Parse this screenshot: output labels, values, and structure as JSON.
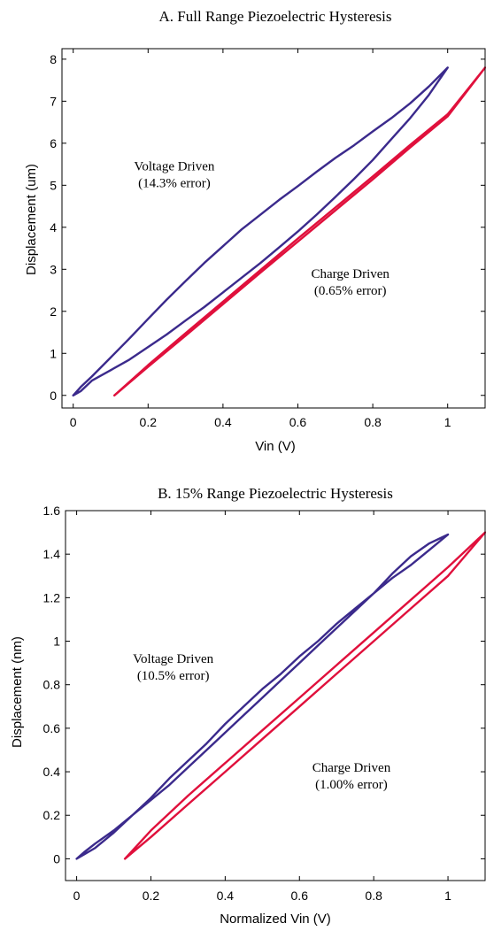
{
  "chart_data": [
    {
      "type": "line",
      "title": "A. Full Range Piezoelectric Hysteresis",
      "xlabel": "Vin (V)",
      "ylabel": "Displacement (um)",
      "xlim": [
        -0.03,
        1.1
      ],
      "ylim": [
        -0.3,
        8.25
      ],
      "xticks": [
        0,
        0.2,
        0.4,
        0.6,
        0.8,
        1
      ],
      "yticks": [
        0,
        1,
        2,
        3,
        4,
        5,
        6,
        7,
        8
      ],
      "grid": false,
      "legend": "none",
      "annotations": [
        {
          "lines": [
            "Voltage Driven",
            "(14.3% error)"
          ],
          "at": [
            0.27,
            5.35
          ]
        },
        {
          "lines": [
            "Charge Driven",
            "(0.65% error)"
          ],
          "at": [
            0.74,
            2.8
          ]
        }
      ],
      "series": [
        {
          "color": "#3b2a8c",
          "x": [
            0.0,
            0.02,
            0.05,
            0.1,
            0.15,
            0.2,
            0.25,
            0.3,
            0.35,
            0.4,
            0.45,
            0.5,
            0.55,
            0.6,
            0.65,
            0.7,
            0.75,
            0.8,
            0.85,
            0.9,
            0.95,
            1.0,
            0.95,
            0.9,
            0.85,
            0.8,
            0.75,
            0.7,
            0.65,
            0.6,
            0.55,
            0.5,
            0.45,
            0.4,
            0.35,
            0.3,
            0.25,
            0.2,
            0.15,
            0.1,
            0.05,
            0.02,
            0.0
          ],
          "y": [
            0.0,
            0.1,
            0.35,
            0.6,
            0.85,
            1.15,
            1.45,
            1.78,
            2.1,
            2.45,
            2.8,
            3.15,
            3.52,
            3.9,
            4.3,
            4.72,
            5.15,
            5.6,
            6.1,
            6.6,
            7.15,
            7.8,
            7.35,
            6.95,
            6.6,
            6.28,
            5.95,
            5.65,
            5.32,
            4.98,
            4.65,
            4.3,
            3.95,
            3.55,
            3.15,
            2.72,
            2.28,
            1.82,
            1.35,
            0.9,
            0.45,
            0.2,
            0.0
          ]
        },
        {
          "color": "#e0103c",
          "x": [
            0.11,
            0.2,
            0.3,
            0.4,
            0.5,
            0.6,
            0.7,
            0.8,
            0.9,
            1.0,
            1.1,
            1.0,
            0.9,
            0.8,
            0.7,
            0.6,
            0.5,
            0.4,
            0.3,
            0.2,
            0.11
          ],
          "y": [
            0.0,
            0.68,
            1.42,
            2.17,
            2.92,
            3.66,
            4.4,
            5.14,
            5.9,
            6.64,
            7.8,
            6.69,
            5.96,
            5.21,
            4.47,
            3.73,
            2.98,
            2.23,
            1.48,
            0.72,
            0.0
          ]
        }
      ]
    },
    {
      "type": "line",
      "title": "B. 15% Range Piezoelectric Hysteresis",
      "xlabel": "Normalized Vin (V)",
      "ylabel": "Displacement (nm)",
      "xlim": [
        -0.03,
        1.1
      ],
      "ylim": [
        -0.1,
        1.6
      ],
      "xticks": [
        0,
        0.2,
        0.4,
        0.6,
        0.8,
        1
      ],
      "yticks": [
        0,
        0.2,
        0.4,
        0.6,
        0.8,
        1,
        1.2,
        1.4,
        1.6
      ],
      "grid": false,
      "legend": "none",
      "annotations": [
        {
          "lines": [
            "Voltage Driven",
            "(10.5% error)"
          ],
          "at": [
            0.26,
            0.9
          ]
        },
        {
          "lines": [
            "Charge Driven",
            "(1.00% error)"
          ],
          "at": [
            0.74,
            0.4
          ]
        }
      ],
      "series": [
        {
          "color": "#3b2a8c",
          "x": [
            0.0,
            0.02,
            0.05,
            0.1,
            0.15,
            0.2,
            0.25,
            0.3,
            0.35,
            0.4,
            0.45,
            0.5,
            0.55,
            0.6,
            0.65,
            0.7,
            0.75,
            0.8,
            0.85,
            0.9,
            0.95,
            1.0,
            0.95,
            0.9,
            0.85,
            0.8,
            0.75,
            0.7,
            0.65,
            0.6,
            0.55,
            0.5,
            0.45,
            0.4,
            0.35,
            0.3,
            0.25,
            0.2,
            0.15,
            0.1,
            0.05,
            0.02,
            0.0
          ],
          "y": [
            0.0,
            0.03,
            0.07,
            0.13,
            0.2,
            0.27,
            0.34,
            0.42,
            0.5,
            0.58,
            0.66,
            0.74,
            0.82,
            0.9,
            0.98,
            1.06,
            1.14,
            1.22,
            1.31,
            1.39,
            1.45,
            1.49,
            1.42,
            1.35,
            1.29,
            1.22,
            1.15,
            1.08,
            1.0,
            0.93,
            0.85,
            0.78,
            0.7,
            0.62,
            0.53,
            0.45,
            0.37,
            0.28,
            0.2,
            0.12,
            0.05,
            0.02,
            0.0
          ]
        },
        {
          "color": "#e0103c",
          "x": [
            0.13,
            0.2,
            0.3,
            0.4,
            0.5,
            0.6,
            0.7,
            0.8,
            0.9,
            1.0,
            1.1,
            1.0,
            0.9,
            0.8,
            0.7,
            0.6,
            0.5,
            0.4,
            0.3,
            0.2,
            0.13
          ],
          "y": [
            0.0,
            0.1,
            0.25,
            0.4,
            0.55,
            0.7,
            0.85,
            1.0,
            1.15,
            1.3,
            1.5,
            1.34,
            1.19,
            1.04,
            0.89,
            0.74,
            0.59,
            0.44,
            0.29,
            0.13,
            0.0
          ]
        }
      ]
    }
  ]
}
